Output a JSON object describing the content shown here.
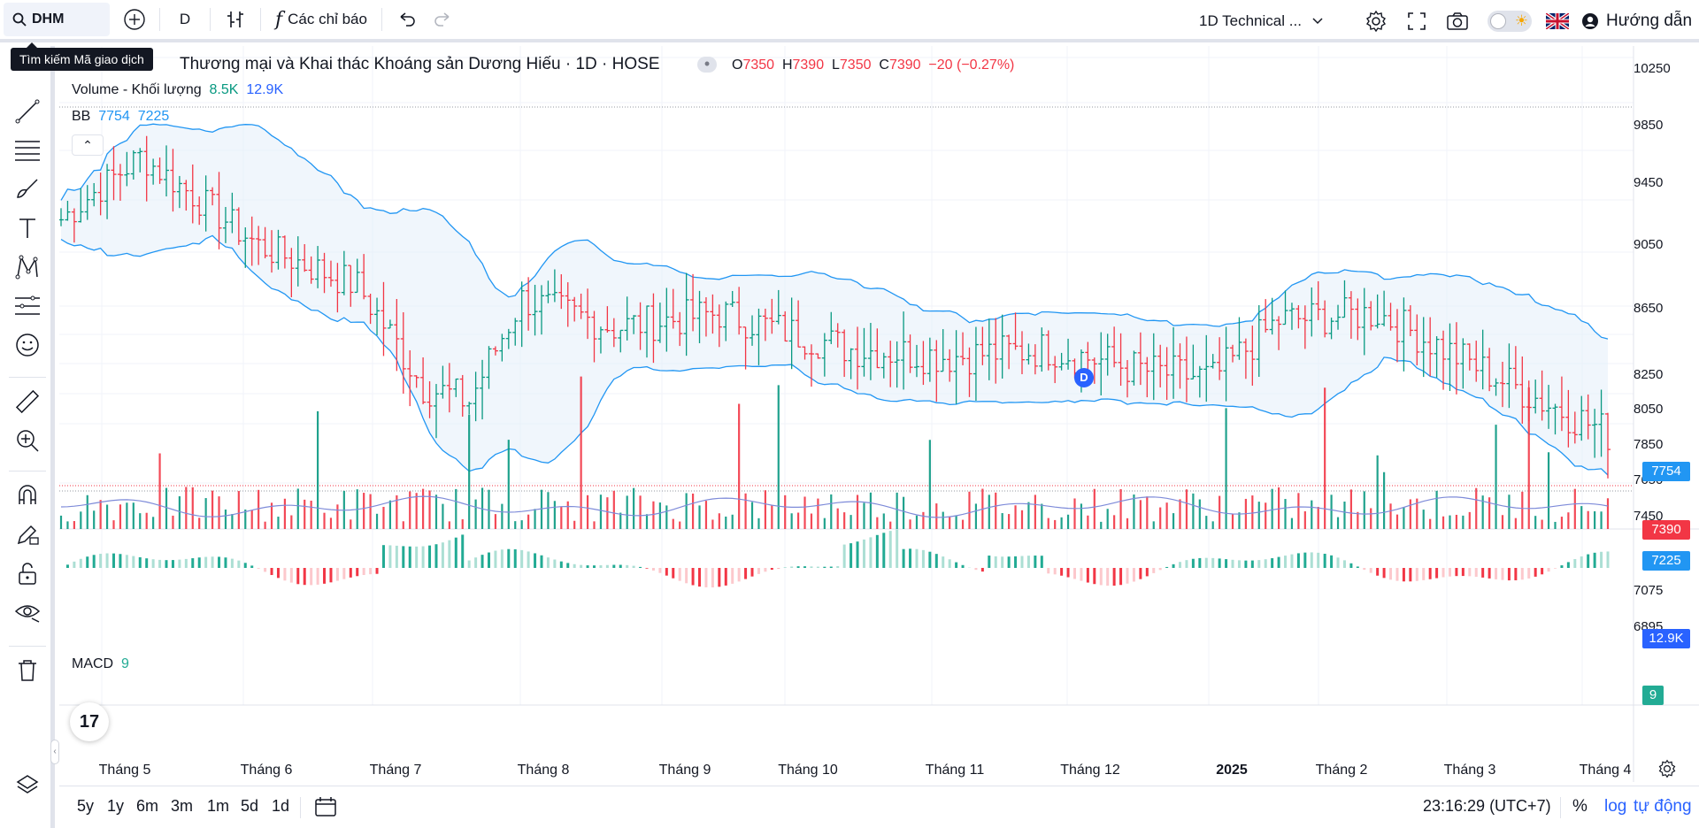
{
  "toolbar": {
    "symbol": "DHM",
    "interval": "D",
    "indicators_label": "Các chỉ báo",
    "layout_name": "1D Technical ...",
    "help_label": "Hướng dẫn"
  },
  "tooltip": "Tìm kiếm Mã giao dịch",
  "legend": {
    "title": "Thương mại và Khai thác Khoáng sản Dương Hiếu · 1D · HOSE",
    "ohlc": {
      "o_label": "O",
      "o": "7350",
      "h_label": "H",
      "h": "7390",
      "l_label": "L",
      "l": "7350",
      "c_label": "C",
      "c": "7390",
      "change": "−20 (−0.27%)"
    },
    "volume_label": "Volume - Khối lượng",
    "volume_value": "8.5K",
    "volume_ma": "12.9K",
    "bb_label": "BB",
    "bb_upper": "7754",
    "bb_lower": "7225",
    "macd_label": "MACD",
    "macd_value": "9"
  },
  "divider_badge": "D",
  "price_axis": {
    "labels": [
      "10250",
      "9850",
      "9450",
      "9050",
      "8650",
      "8250",
      "8050",
      "7850",
      "7650",
      "7450",
      "7075",
      "6895"
    ],
    "last_price": "7390",
    "bb_upper": "7754",
    "bb_lower": "7225",
    "volume_ma": "12.9K",
    "macd": "9"
  },
  "time_axis": [
    "Tháng 5",
    "Tháng 6",
    "Tháng 7",
    "Tháng 8",
    "Tháng 9",
    "Tháng 10",
    "Tháng 11",
    "Tháng 12",
    "2025",
    "Tháng 2",
    "Tháng 3",
    "Tháng 4"
  ],
  "bottom": {
    "ranges": [
      "5y",
      "1y",
      "6m",
      "3m",
      "1m",
      "5d",
      "1d"
    ],
    "clock": "23:16:29 (UTC+7)",
    "percent": "%",
    "log": "log",
    "auto": "tự động"
  },
  "colors": {
    "up": "#089981",
    "down": "#f23645",
    "bb_line": "#2196f3",
    "bb_fill": "#e3eefa",
    "accent": "#2962ff"
  },
  "chart_data": {
    "type": "bar",
    "y_range": [
      6895,
      10250
    ],
    "last_close": 7390,
    "bollinger": {
      "upper": 7754,
      "lower": 7225
    }
  }
}
